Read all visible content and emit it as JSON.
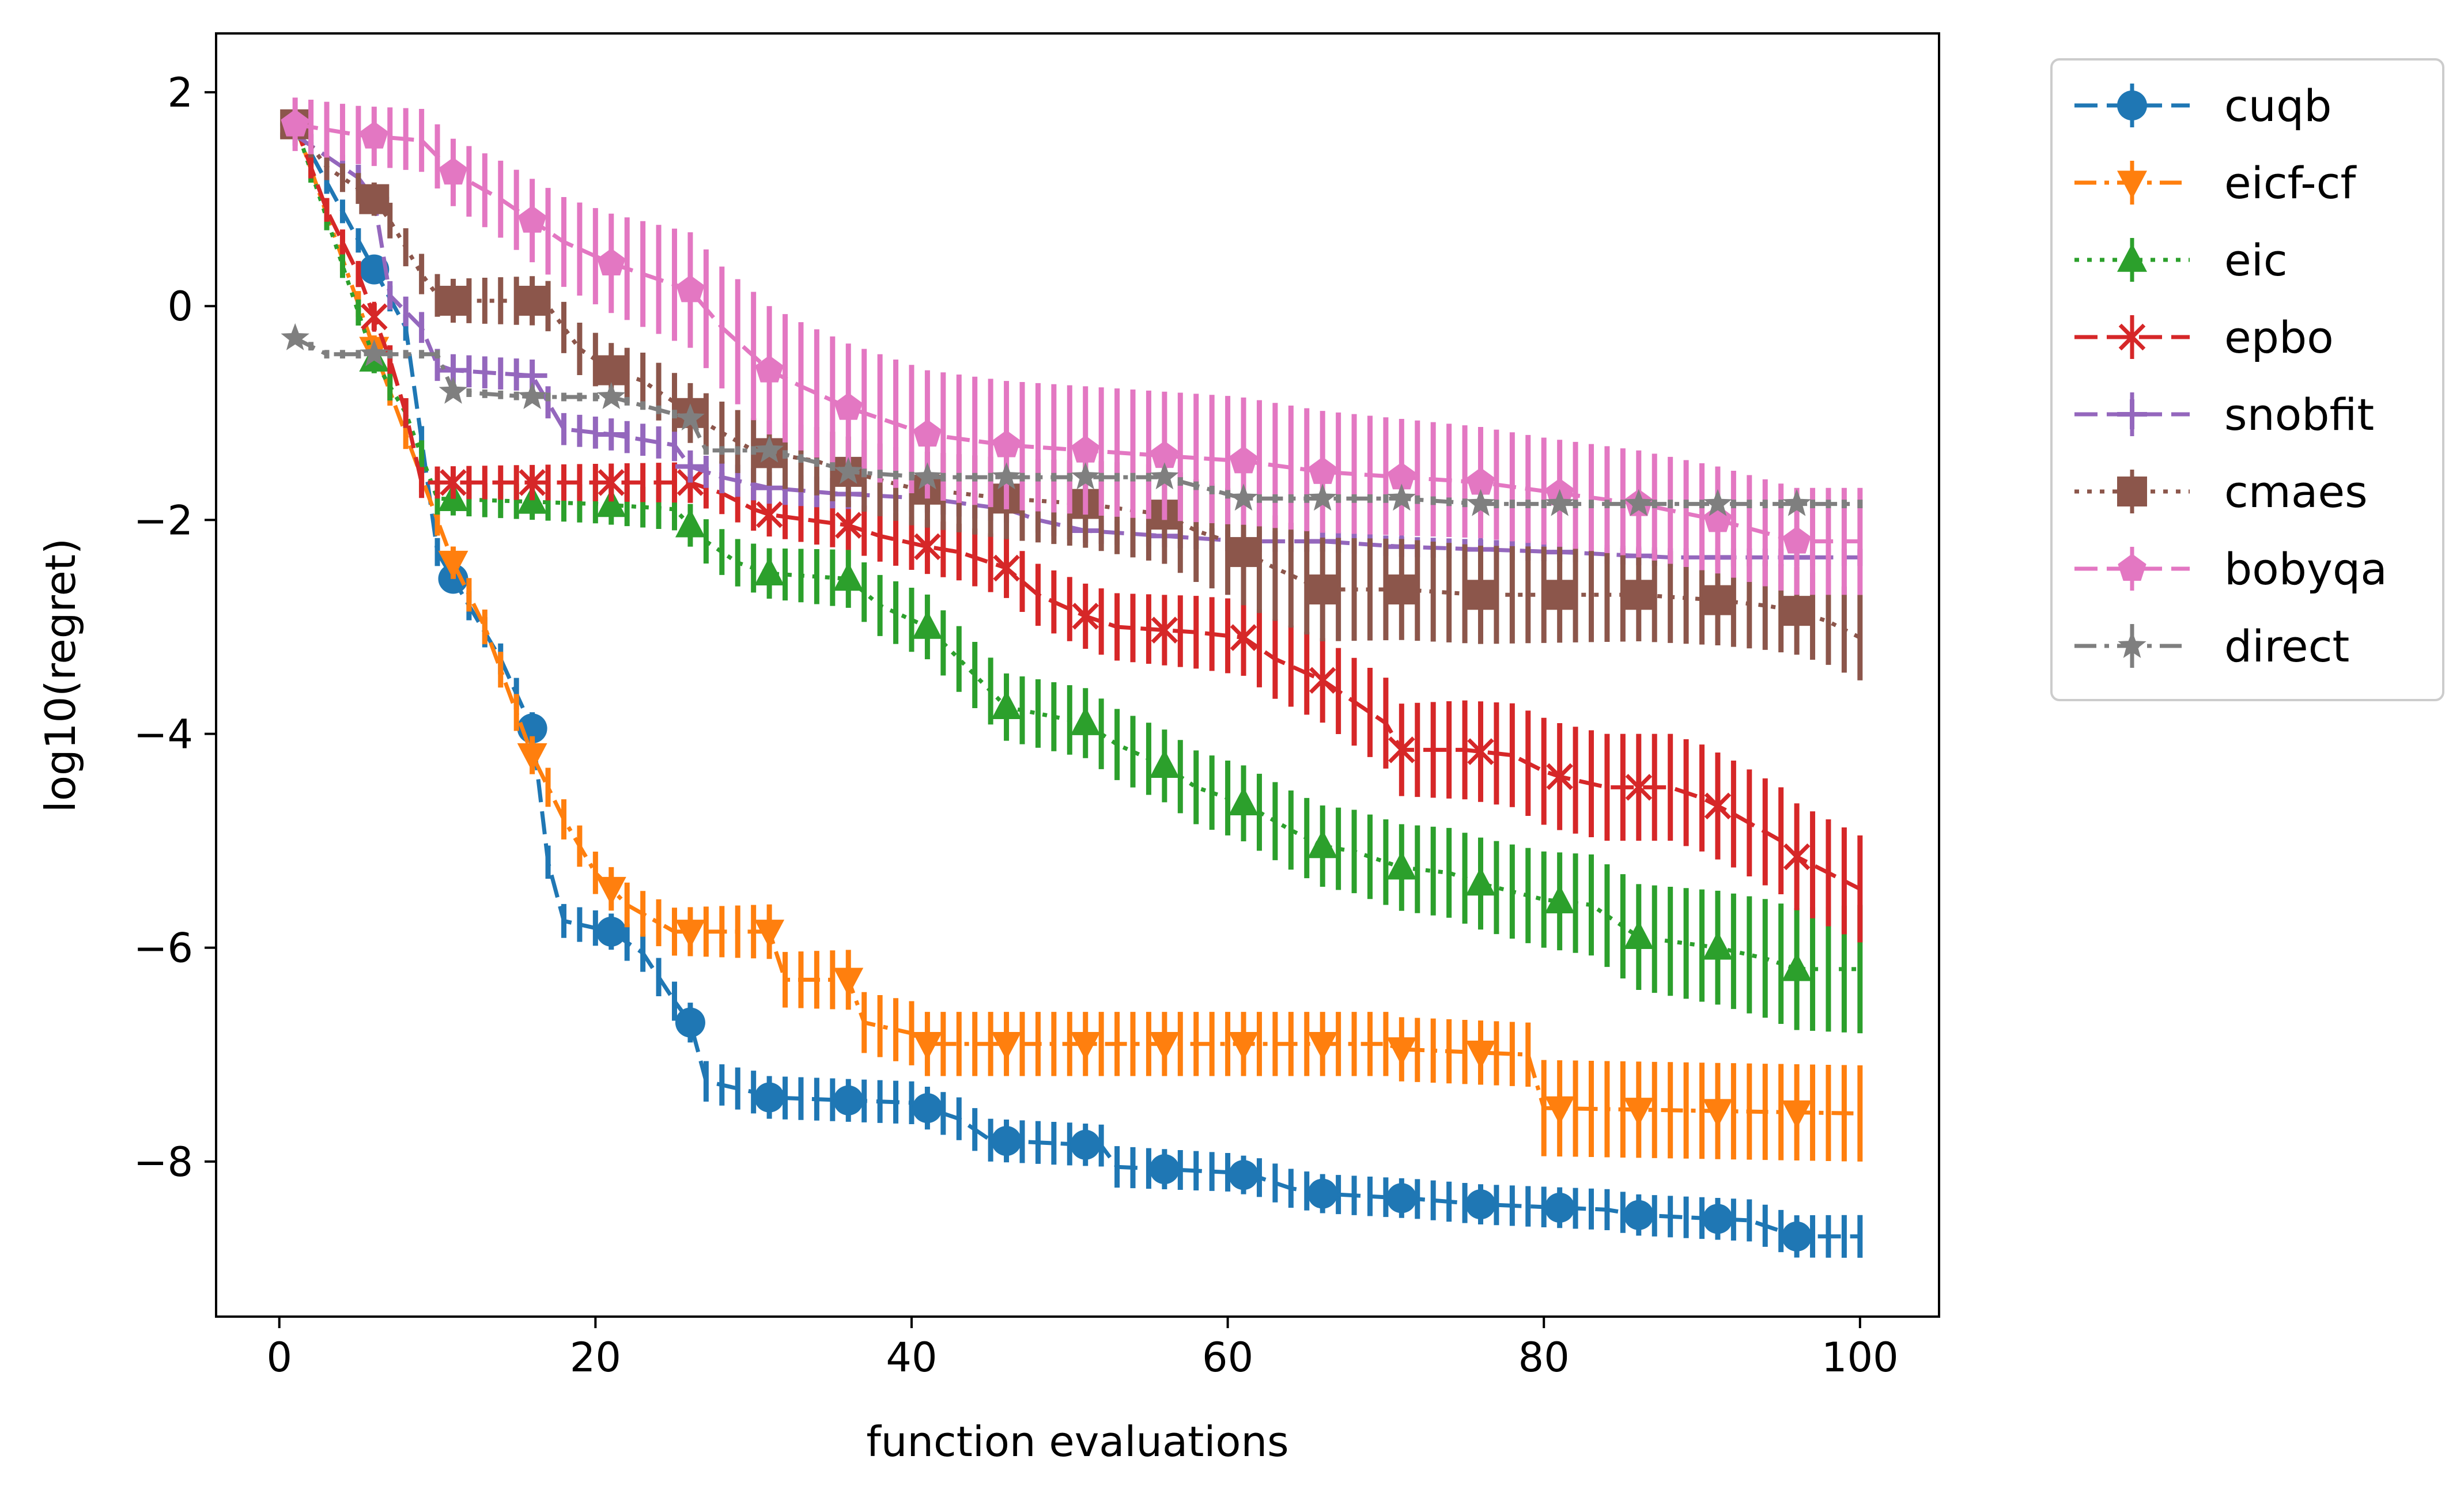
{
  "chart_data": {
    "type": "line",
    "title": "",
    "xlabel": "function evaluations",
    "ylabel": "log10(regret)",
    "xlim": [
      -4,
      105
    ],
    "ylim": [
      -9.45,
      2.55
    ],
    "xticks": [
      0,
      20,
      40,
      60,
      80,
      100
    ],
    "yticks": [
      2,
      0,
      -2,
      -4,
      -6,
      -8
    ],
    "xtick_labels": [
      "0",
      "20",
      "40",
      "60",
      "80",
      "100"
    ],
    "ytick_labels": [
      "2",
      "0",
      "−2",
      "−4",
      "−6",
      "−8"
    ],
    "legend_position": "outside-right-top",
    "marker_every": "1, 6, 11, ..., 96",
    "series": [
      {
        "name": "cuqb",
        "color": "#1f77b4",
        "marker": "circle",
        "dash": "dashed",
        "points": [
          [
            1,
            1.7
          ],
          [
            8,
            -0.2
          ],
          [
            10,
            -2.3
          ],
          [
            12,
            -2.8
          ],
          [
            14,
            -3.3
          ],
          [
            16,
            -3.95
          ],
          [
            17,
            -5.2
          ],
          [
            18,
            -5.75
          ],
          [
            21,
            -5.85
          ],
          [
            23,
            -6.05
          ],
          [
            25,
            -6.5
          ],
          [
            26,
            -6.7
          ],
          [
            27,
            -7.25
          ],
          [
            30,
            -7.35
          ],
          [
            31,
            -7.4
          ],
          [
            40,
            -7.45
          ],
          [
            43,
            -7.6
          ],
          [
            45,
            -7.8
          ],
          [
            52,
            -7.85
          ],
          [
            53,
            -8.05
          ],
          [
            60,
            -8.1
          ],
          [
            62,
            -8.15
          ],
          [
            64,
            -8.25
          ],
          [
            66,
            -8.3
          ],
          [
            72,
            -8.35
          ],
          [
            76,
            -8.4
          ],
          [
            84,
            -8.45
          ],
          [
            86,
            -8.5
          ],
          [
            93,
            -8.55
          ],
          [
            96,
            -8.7
          ],
          [
            100,
            -8.7
          ]
        ],
        "err_band": [
          [
            1,
            0.1
          ],
          [
            30,
            0.2
          ],
          [
            50,
            0.2
          ],
          [
            60,
            0.18
          ],
          [
            100,
            0.2
          ]
        ]
      },
      {
        "name": "eicf-cf",
        "color": "#ff7f0e",
        "marker": "triangle-down",
        "dash": "dashdot",
        "points": [
          [
            1,
            1.7
          ],
          [
            6,
            -0.4
          ],
          [
            8,
            -1.2
          ],
          [
            10,
            -2.0
          ],
          [
            11,
            -2.4
          ],
          [
            13,
            -3.0
          ],
          [
            15,
            -3.8
          ],
          [
            16,
            -4.2
          ],
          [
            18,
            -4.8
          ],
          [
            20,
            -5.3
          ],
          [
            22,
            -5.6
          ],
          [
            25,
            -5.85
          ],
          [
            31,
            -5.85
          ],
          [
            32,
            -6.3
          ],
          [
            36,
            -6.3
          ],
          [
            37,
            -6.7
          ],
          [
            40,
            -6.8
          ],
          [
            41,
            -6.9
          ],
          [
            70,
            -6.9
          ],
          [
            71,
            -6.95
          ],
          [
            79,
            -7.0
          ],
          [
            80,
            -7.5
          ],
          [
            100,
            -7.55
          ]
        ],
        "err_band": [
          [
            1,
            0.1
          ],
          [
            30,
            0.25
          ],
          [
            40,
            0.3
          ],
          [
            79,
            0.3
          ],
          [
            80,
            0.45
          ],
          [
            100,
            0.45
          ]
        ]
      },
      {
        "name": "eic",
        "color": "#2ca02c",
        "marker": "triangle-up",
        "dash": "dotted",
        "points": [
          [
            1,
            1.7
          ],
          [
            6,
            -0.5
          ],
          [
            8,
            -1.0
          ],
          [
            10,
            -1.8
          ],
          [
            20,
            -1.85
          ],
          [
            25,
            -1.9
          ],
          [
            27,
            -2.2
          ],
          [
            29,
            -2.4
          ],
          [
            31,
            -2.5
          ],
          [
            36,
            -2.55
          ],
          [
            38,
            -2.8
          ],
          [
            41,
            -3.0
          ],
          [
            43,
            -3.3
          ],
          [
            45,
            -3.6
          ],
          [
            46,
            -3.75
          ],
          [
            51,
            -3.9
          ],
          [
            53,
            -4.1
          ],
          [
            56,
            -4.3
          ],
          [
            58,
            -4.5
          ],
          [
            61,
            -4.65
          ],
          [
            64,
            -4.9
          ],
          [
            66,
            -5.05
          ],
          [
            68,
            -5.1
          ],
          [
            71,
            -5.25
          ],
          [
            74,
            -5.3
          ],
          [
            76,
            -5.4
          ],
          [
            80,
            -5.55
          ],
          [
            83,
            -5.6
          ],
          [
            86,
            -5.9
          ],
          [
            91,
            -6.0
          ],
          [
            94,
            -6.1
          ],
          [
            96,
            -6.2
          ],
          [
            100,
            -6.2
          ]
        ],
        "err_band": [
          [
            1,
            0.1
          ],
          [
            10,
            0.15
          ],
          [
            26,
            0.2
          ],
          [
            40,
            0.3
          ],
          [
            60,
            0.35
          ],
          [
            80,
            0.45
          ],
          [
            100,
            0.6
          ]
        ]
      },
      {
        "name": "epbo",
        "color": "#d62728",
        "marker": "x",
        "dash": "dashed",
        "points": [
          [
            1,
            1.7
          ],
          [
            3,
            0.9
          ],
          [
            5,
            0.3
          ],
          [
            7,
            -0.5
          ],
          [
            8,
            -1.0
          ],
          [
            9,
            -1.65
          ],
          [
            26,
            -1.65
          ],
          [
            28,
            -1.75
          ],
          [
            30,
            -1.9
          ],
          [
            31,
            -1.95
          ],
          [
            36,
            -2.05
          ],
          [
            38,
            -2.15
          ],
          [
            41,
            -2.25
          ],
          [
            43,
            -2.3
          ],
          [
            46,
            -2.45
          ],
          [
            48,
            -2.7
          ],
          [
            51,
            -2.9
          ],
          [
            53,
            -3.0
          ],
          [
            58,
            -3.05
          ],
          [
            61,
            -3.1
          ],
          [
            63,
            -3.3
          ],
          [
            66,
            -3.5
          ],
          [
            68,
            -3.7
          ],
          [
            70,
            -3.9
          ],
          [
            71,
            -4.15
          ],
          [
            75,
            -4.15
          ],
          [
            78,
            -4.2
          ],
          [
            80,
            -4.35
          ],
          [
            81,
            -4.4
          ],
          [
            84,
            -4.5
          ],
          [
            88,
            -4.5
          ],
          [
            90,
            -4.6
          ],
          [
            92,
            -4.75
          ],
          [
            95,
            -5.0
          ],
          [
            96,
            -5.15
          ],
          [
            98,
            -5.3
          ],
          [
            100,
            -5.45
          ]
        ],
        "err_band": [
          [
            1,
            0.1
          ],
          [
            10,
            0.15
          ],
          [
            30,
            0.2
          ],
          [
            40,
            0.25
          ],
          [
            60,
            0.35
          ],
          [
            80,
            0.5
          ],
          [
            100,
            0.5
          ]
        ]
      },
      {
        "name": "snobfit",
        "color": "#9467bd",
        "marker": "plus",
        "dash": "dashed",
        "points": [
          [
            1,
            1.6
          ],
          [
            3,
            1.4
          ],
          [
            5,
            1.2
          ],
          [
            6,
            1.0
          ],
          [
            7,
            0.1
          ],
          [
            9,
            -0.2
          ],
          [
            10,
            -0.55
          ],
          [
            11,
            -0.6
          ],
          [
            16,
            -0.65
          ],
          [
            17,
            -0.9
          ],
          [
            18,
            -1.15
          ],
          [
            21,
            -1.2
          ],
          [
            25,
            -1.3
          ],
          [
            26,
            -1.5
          ],
          [
            28,
            -1.6
          ],
          [
            31,
            -1.7
          ],
          [
            35,
            -1.75
          ],
          [
            41,
            -1.8
          ],
          [
            46,
            -1.9
          ],
          [
            48,
            -2.0
          ],
          [
            51,
            -2.1
          ],
          [
            56,
            -2.15
          ],
          [
            61,
            -2.2
          ],
          [
            66,
            -2.2
          ],
          [
            71,
            -2.25
          ],
          [
            81,
            -2.3
          ],
          [
            88,
            -2.35
          ],
          [
            96,
            -2.35
          ],
          [
            100,
            -2.35
          ]
        ],
        "err_band": [
          [
            1,
            0.1
          ],
          [
            10,
            0.15
          ],
          [
            30,
            0.15
          ],
          [
            60,
            0.1
          ],
          [
            100,
            0.08
          ]
        ]
      },
      {
        "name": "cmaes",
        "color": "#8c564b",
        "marker": "square",
        "dash": "dotted",
        "points": [
          [
            1,
            1.7
          ],
          [
            3,
            1.3
          ],
          [
            5,
            1.1
          ],
          [
            6,
            1.0
          ],
          [
            7,
            0.8
          ],
          [
            9,
            0.3
          ],
          [
            10,
            0.1
          ],
          [
            11,
            0.05
          ],
          [
            16,
            0.05
          ],
          [
            17,
            0.0
          ],
          [
            19,
            -0.4
          ],
          [
            21,
            -0.6
          ],
          [
            23,
            -0.7
          ],
          [
            25,
            -0.9
          ],
          [
            27,
            -1.1
          ],
          [
            30,
            -1.35
          ],
          [
            34,
            -1.45
          ],
          [
            36,
            -1.55
          ],
          [
            40,
            -1.7
          ],
          [
            43,
            -1.75
          ],
          [
            46,
            -1.8
          ],
          [
            51,
            -1.85
          ],
          [
            56,
            -1.95
          ],
          [
            58,
            -2.1
          ],
          [
            60,
            -2.2
          ],
          [
            61,
            -2.3
          ],
          [
            63,
            -2.45
          ],
          [
            66,
            -2.65
          ],
          [
            71,
            -2.65
          ],
          [
            76,
            -2.7
          ],
          [
            81,
            -2.7
          ],
          [
            86,
            -2.7
          ],
          [
            91,
            -2.75
          ],
          [
            94,
            -2.8
          ],
          [
            96,
            -2.85
          ],
          [
            98,
            -2.95
          ],
          [
            100,
            -3.1
          ]
        ],
        "err_band": [
          [
            1,
            0.1
          ],
          [
            10,
            0.2
          ],
          [
            30,
            0.3
          ],
          [
            50,
            0.4
          ],
          [
            60,
            0.5
          ],
          [
            80,
            0.45
          ],
          [
            100,
            0.4
          ]
        ]
      },
      {
        "name": "bobyqa",
        "color": "#e377c2",
        "marker": "pentagon",
        "dash": "dashed",
        "points": [
          [
            1,
            1.7
          ],
          [
            3,
            1.65
          ],
          [
            5,
            1.6
          ],
          [
            9,
            1.55
          ],
          [
            11,
            1.25
          ],
          [
            14,
            1.0
          ],
          [
            16,
            0.8
          ],
          [
            18,
            0.6
          ],
          [
            21,
            0.4
          ],
          [
            23,
            0.3
          ],
          [
            25,
            0.2
          ],
          [
            26,
            0.15
          ],
          [
            28,
            -0.2
          ],
          [
            31,
            -0.6
          ],
          [
            33,
            -0.75
          ],
          [
            36,
            -0.95
          ],
          [
            38,
            -1.05
          ],
          [
            41,
            -1.2
          ],
          [
            46,
            -1.3
          ],
          [
            51,
            -1.35
          ],
          [
            56,
            -1.4
          ],
          [
            61,
            -1.45
          ],
          [
            66,
            -1.55
          ],
          [
            71,
            -1.6
          ],
          [
            76,
            -1.65
          ],
          [
            81,
            -1.75
          ],
          [
            86,
            -1.85
          ],
          [
            91,
            -2.0
          ],
          [
            96,
            -2.2
          ],
          [
            100,
            -2.2
          ]
        ],
        "err_band": [
          [
            1,
            0.25
          ],
          [
            10,
            0.3
          ],
          [
            20,
            0.45
          ],
          [
            30,
            0.6
          ],
          [
            45,
            0.6
          ],
          [
            60,
            0.6
          ],
          [
            80,
            0.5
          ],
          [
            100,
            0.5
          ]
        ]
      },
      {
        "name": "direct",
        "color": "#7f7f7f",
        "marker": "star",
        "dash": "dashdot",
        "points": [
          [
            1,
            -0.3
          ],
          [
            3,
            -0.45
          ],
          [
            10,
            -0.45
          ],
          [
            11,
            -0.8
          ],
          [
            16,
            -0.85
          ],
          [
            21,
            -0.85
          ],
          [
            26,
            -1.05
          ],
          [
            27,
            -1.35
          ],
          [
            31,
            -1.35
          ],
          [
            35,
            -1.5
          ],
          [
            36,
            -1.55
          ],
          [
            41,
            -1.6
          ],
          [
            56,
            -1.6
          ],
          [
            61,
            -1.8
          ],
          [
            71,
            -1.8
          ],
          [
            76,
            -1.85
          ],
          [
            100,
            -1.85
          ]
        ],
        "err_band": [
          [
            1,
            0.04
          ],
          [
            100,
            0.04
          ]
        ]
      }
    ]
  }
}
